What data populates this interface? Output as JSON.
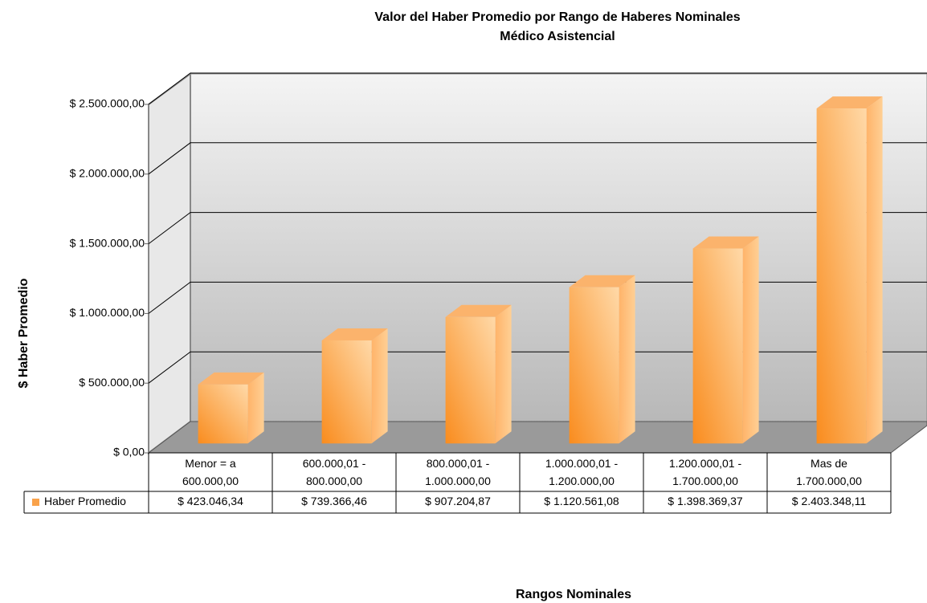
{
  "chart_data": {
    "type": "bar3d",
    "title": "Valor del Haber Promedio por Rango de Haberes Nominales",
    "subtitle": "Médico Asistencial",
    "y_label": "$ Haber Promedio",
    "x_label": "Rangos Nominales",
    "categories": [
      "Menor = a\n600.000,00",
      "600.000,01 -\n800.000,00",
      "800.000,01 -\n1.000.000,00",
      "1.000.000,01 -\n1.200.000,00",
      "1.200.000,01 -\n1.700.000,00",
      "Mas de\n1.700.000,00"
    ],
    "series": [
      {
        "name": "Haber Promedio",
        "color": "#f9a24a",
        "values": [
          423046.34,
          739366.46,
          907204.87,
          1120561.08,
          1398369.37,
          2403348.11
        ],
        "value_labels": [
          "$ 423.046,34",
          "$ 739.366,46",
          "$ 907.204,87",
          "$ 1.120.561,08",
          "$ 1.398.369,37",
          "$ 2.403.348,11"
        ]
      }
    ],
    "ylim": [
      0,
      2500000
    ],
    "yticks": [
      {
        "value": 0,
        "label": "$ 0,00"
      },
      {
        "value": 500000,
        "label": "$ 500.000,00"
      },
      {
        "value": 1000000,
        "label": "$ 1.000.000,00"
      },
      {
        "value": 1500000,
        "label": "$ 1.500.000,00"
      },
      {
        "value": 2000000,
        "label": "$ 2.000.000,00"
      },
      {
        "value": 2500000,
        "label": "$ 2.500.000,00"
      }
    ],
    "grid": true
  }
}
